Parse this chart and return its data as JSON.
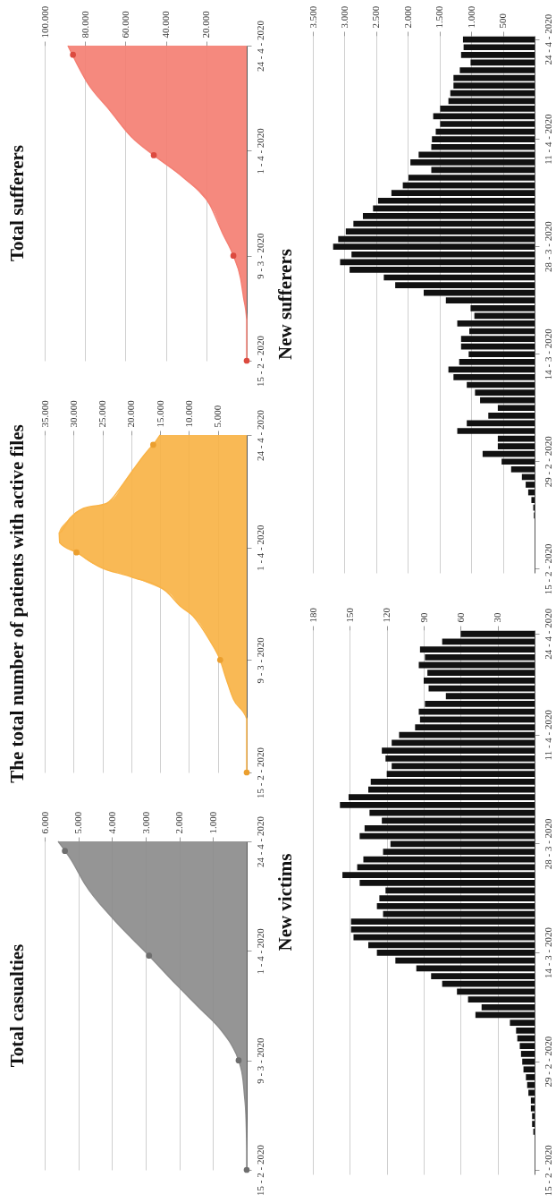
{
  "chart_data": [
    {
      "type": "area",
      "title": "Total casualties",
      "orientation": "horizontal",
      "x": [
        "2020-02-15",
        "2020-02-19",
        "2020-02-26",
        "2020-03-02",
        "2020-03-05",
        "2020-03-09",
        "2020-03-12",
        "2020-03-15",
        "2020-03-20",
        "2020-03-25",
        "2020-03-31",
        "2020-04-08",
        "2020-04-15",
        "2020-04-20",
        "2020-04-24"
      ],
      "series": [
        {
          "color": "#8c8c8c",
          "values": [
            0,
            0,
            20,
            70,
            110,
            240,
            430,
            720,
            1400,
            2100,
            2900,
            4000,
            4800,
            5200,
            5600
          ]
        },
        {
          "type": "scatter",
          "color": "#6e6e6e",
          "x": [
            "2020-02-15",
            "2020-03-09",
            "2020-03-31",
            "2020-04-22"
          ],
          "values": [
            0,
            240,
            2900,
            5400
          ]
        }
      ],
      "xlim": [
        6000,
        0
      ],
      "xticks": [
        {
          "value": 1000,
          "label": "1.000"
        },
        {
          "value": 2000,
          "label": "2.000"
        },
        {
          "value": 3000,
          "label": "3.000"
        },
        {
          "value": 4000,
          "label": "4.000"
        },
        {
          "value": 5000,
          "label": "5.000"
        },
        {
          "value": 6000,
          "label": "6.000"
        }
      ],
      "ylim": [
        "2020-02-15",
        "2020-04-24"
      ],
      "yticks": [
        {
          "value": "2020-02-15",
          "label": "15 - 2 - 2020"
        },
        {
          "value": "2020-03-09",
          "label": "9 - 3 - 2020"
        },
        {
          "value": "2020-04-01",
          "label": "1 - 4 - 2020"
        },
        {
          "value": "2020-04-24",
          "label": "24 - 4 - 2020"
        }
      ],
      "grid": "x"
    },
    {
      "type": "area",
      "title": "The total number of patients with active files",
      "orientation": "horizontal",
      "x": [
        "2020-02-15",
        "2020-02-26",
        "2020-03-01",
        "2020-03-05",
        "2020-03-09",
        "2020-03-13",
        "2020-03-18",
        "2020-03-20",
        "2020-03-23",
        "2020-03-26",
        "2020-03-28",
        "2020-03-31",
        "2020-04-02",
        "2020-04-04",
        "2020-04-07",
        "2020-04-09",
        "2020-04-10",
        "2020-04-14",
        "2020-04-17",
        "2020-04-21",
        "2020-04-22",
        "2020-04-24"
      ],
      "series": [
        {
          "color": "#f9b347",
          "values": [
            0,
            0,
            2300,
            3500,
            4600,
            6400,
            9300,
            11500,
            13900,
            20000,
            25400,
            29500,
            32400,
            32500,
            30600,
            28300,
            24300,
            21400,
            19600,
            17000,
            16200,
            15000
          ]
        },
        {
          "type": "scatter",
          "color": "#eb9f2f",
          "x": [
            "2020-02-15",
            "2020-03-09",
            "2020-03-31",
            "2020-04-22"
          ],
          "values": [
            0,
            4600,
            29500,
            16200
          ]
        }
      ],
      "xlim": [
        35000,
        0
      ],
      "xticks": [
        {
          "value": 5000,
          "label": "5.000"
        },
        {
          "value": 10000,
          "label": "10.000"
        },
        {
          "value": 15000,
          "label": "15.000"
        },
        {
          "value": 20000,
          "label": "20.000"
        },
        {
          "value": 25000,
          "label": "25.000"
        },
        {
          "value": 30000,
          "label": "30.000"
        },
        {
          "value": 35000,
          "label": "35.000"
        }
      ],
      "ylim": [
        "2020-02-15",
        "2020-04-24"
      ],
      "yticks": [
        {
          "value": "2020-02-15",
          "label": "15 - 2 - 2020"
        },
        {
          "value": "2020-03-09",
          "label": "9 - 3 - 2020"
        },
        {
          "value": "2020-04-01",
          "label": "1 - 4 - 2020"
        },
        {
          "value": "2020-04-24",
          "label": "24 - 4 - 2020"
        }
      ],
      "grid": "x"
    },
    {
      "type": "area",
      "title": "Total sufferers",
      "orientation": "horizontal",
      "x": [
        "2020-02-15",
        "2020-02-24",
        "2020-02-29",
        "2020-03-04",
        "2020-03-09",
        "2020-03-14",
        "2020-03-20",
        "2020-03-26",
        "2020-03-31",
        "2020-04-04",
        "2020-04-10",
        "2020-04-16",
        "2020-04-20",
        "2020-04-24"
      ],
      "series": [
        {
          "color": "#f47f73",
          "values": [
            0,
            0,
            1600,
            3000,
            6600,
            12000,
            18000,
            31000,
            46000,
            57000,
            68000,
            79000,
            84000,
            88500
          ]
        },
        {
          "type": "scatter",
          "color": "#dc4a3f",
          "x": [
            "2020-02-15",
            "2020-03-09",
            "2020-03-31",
            "2020-04-22"
          ],
          "values": [
            0,
            6600,
            46000,
            86000
          ]
        }
      ],
      "xlim": [
        100000,
        0
      ],
      "xticks": [
        {
          "value": 20000,
          "label": "20.000"
        },
        {
          "value": 40000,
          "label": "40.000"
        },
        {
          "value": 60000,
          "label": "60.000"
        },
        {
          "value": 80000,
          "label": "80.000"
        },
        {
          "value": 100000,
          "label": "100.000"
        }
      ],
      "ylim": [
        "2020-02-15",
        "2020-04-24"
      ],
      "yticks": [
        {
          "value": "2020-02-15",
          "label": "15 - 2 - 2020"
        },
        {
          "value": "2020-03-09",
          "label": "9 - 3 - 2020"
        },
        {
          "value": "2020-04-01",
          "label": "1 - 4 - 2020"
        },
        {
          "value": "2020-04-24",
          "label": "24 - 4 - 2020"
        }
      ],
      "grid": "x"
    },
    {
      "type": "bar",
      "title": "New victims",
      "orientation": "horizontal",
      "categories": [
        "24 - 4 - 2020",
        null,
        null,
        null,
        null,
        null,
        null,
        null,
        null,
        null,
        null,
        null,
        null,
        "11 - 4 - 2020",
        null,
        null,
        null,
        null,
        null,
        null,
        null,
        null,
        null,
        null,
        null,
        null,
        null,
        "28 - 3 - 2020",
        null,
        null,
        null,
        null,
        null,
        null,
        null,
        null,
        null,
        null,
        null,
        null,
        null,
        "14 - 3 - 2020",
        null,
        null,
        null,
        null,
        null,
        null,
        null,
        null,
        null,
        null,
        null,
        null,
        null,
        "29 - 2 - 2020",
        null,
        null,
        null,
        null,
        null,
        null,
        null,
        null,
        null,
        null,
        null,
        null,
        null,
        "15 - 2 - 2020"
      ],
      "values": [
        60,
        75,
        93,
        89,
        94,
        87,
        90,
        86,
        72,
        89,
        94,
        93,
        97,
        110,
        116,
        124,
        121,
        116,
        120,
        133,
        135,
        151,
        158,
        134,
        124,
        138,
        142,
        117,
        123,
        139,
        144,
        156,
        142,
        121,
        126,
        128,
        123,
        149,
        149,
        147,
        135,
        128,
        113,
        96,
        84,
        75,
        63,
        54,
        43,
        48,
        20,
        15,
        14,
        12,
        11,
        10,
        9,
        7,
        6,
        5,
        3,
        3,
        2,
        2,
        1,
        0,
        0,
        0,
        0,
        0
      ],
      "color": "#111111",
      "xlim": [
        180,
        0
      ],
      "xticks": [
        30,
        60,
        90,
        120,
        150,
        180
      ],
      "grid": "x"
    },
    {
      "type": "bar",
      "title": "New sufferers",
      "orientation": "horizontal",
      "categories": [
        "24 - 4 - 2020",
        null,
        null,
        null,
        null,
        null,
        null,
        null,
        null,
        null,
        null,
        null,
        null,
        "11 - 4 - 2020",
        null,
        null,
        null,
        null,
        null,
        null,
        null,
        null,
        null,
        null,
        null,
        null,
        null,
        "28 - 3 - 2020",
        null,
        null,
        null,
        null,
        null,
        null,
        null,
        null,
        null,
        null,
        null,
        null,
        null,
        "14 - 3 - 2020",
        null,
        null,
        null,
        null,
        null,
        null,
        null,
        null,
        null,
        null,
        null,
        null,
        null,
        "29 - 2 - 2020",
        null,
        null,
        null,
        null,
        null,
        null,
        null,
        null,
        null,
        null,
        null,
        null,
        null,
        "15 - 2 - 2020"
      ],
      "values": [
        1130,
        1120,
        1160,
        1010,
        1180,
        1280,
        1280,
        1330,
        1360,
        1490,
        1600,
        1490,
        1560,
        1620,
        1630,
        1830,
        1960,
        1630,
        1990,
        2080,
        2260,
        2470,
        2550,
        2710,
        2860,
        2980,
        3100,
        3180,
        2890,
        3070,
        2920,
        2380,
        2200,
        1750,
        1400,
        1010,
        950,
        1220,
        1030,
        1160,
        1160,
        1040,
        1190,
        1360,
        1280,
        1070,
        940,
        860,
        580,
        730,
        1070,
        1220,
        580,
        580,
        820,
        520,
        370,
        200,
        140,
        100,
        50,
        20,
        10,
        0,
        0,
        0,
        0,
        0,
        0,
        0
      ],
      "color": "#111111",
      "xlim": [
        3500,
        0
      ],
      "xticks": [
        {
          "value": 500,
          "label": "500"
        },
        {
          "value": 1000,
          "label": "1.000"
        },
        {
          "value": 1500,
          "label": "1.500"
        },
        {
          "value": 2000,
          "label": "2.000"
        },
        {
          "value": 2500,
          "label": "2.500"
        },
        {
          "value": 3000,
          "label": "3.000"
        },
        {
          "value": 3500,
          "label": "3.500"
        }
      ],
      "grid": "x"
    }
  ]
}
